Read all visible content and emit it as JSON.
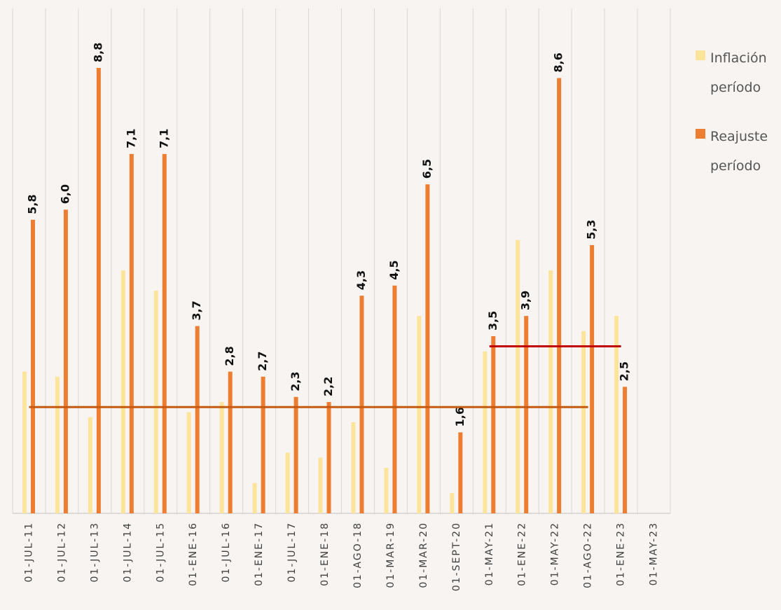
{
  "chart_data": {
    "type": "bar",
    "categories": [
      "01-JUL-11",
      "01-JUL-12",
      "01-JUL-13",
      "01-JUL-14",
      "01-JUL-15",
      "01-ENE-16",
      "01-JUL-16",
      "01-ENE-17",
      "01-JUL-17",
      "01-ENE-18",
      "01-AGO-18",
      "01-MAR-19",
      "01-MAR-20",
      "01-SEPT-20",
      "01-MAY-21",
      "01-ENE-22",
      "01-MAY-22",
      "01-AGO-22",
      "01-ENE-23",
      "01-MAY-23"
    ],
    "series": [
      {
        "name": "Inflación período",
        "color": "#fde49b",
        "values": [
          2.8,
          2.7,
          1.9,
          4.8,
          4.4,
          2.0,
          2.2,
          0.6,
          1.2,
          1.1,
          1.8,
          0.9,
          3.9,
          0.4,
          3.2,
          5.4,
          4.8,
          3.6,
          3.9,
          null
        ]
      },
      {
        "name": "Reajuste período",
        "color": "#ed7d31",
        "values": [
          5.8,
          6.0,
          8.8,
          7.1,
          7.1,
          3.7,
          2.8,
          2.7,
          2.3,
          2.2,
          4.3,
          4.5,
          6.5,
          1.6,
          3.5,
          3.9,
          8.6,
          5.3,
          2.5,
          null
        ],
        "value_labels": [
          "5,8",
          "6,0",
          "8,8",
          "7,1",
          "7,1",
          "3,7",
          "2,8",
          "2,7",
          "2,3",
          "2,2",
          "4,3",
          "4,5",
          "6,5",
          "1,6",
          "3,5",
          "3,9",
          "8,6",
          "5,3",
          "2,5",
          null
        ]
      }
    ],
    "reference_lines": [
      {
        "value": 2.1,
        "start": "01-JUL-11",
        "end": "01-AGO-22",
        "color": "#c55a11"
      },
      {
        "value": 3.3,
        "start": "01-MAY-21",
        "end": "01-ENE-23",
        "color": "#c00000"
      }
    ],
    "ylim": [
      0,
      8.8
    ],
    "grid": true,
    "legend": "right"
  }
}
